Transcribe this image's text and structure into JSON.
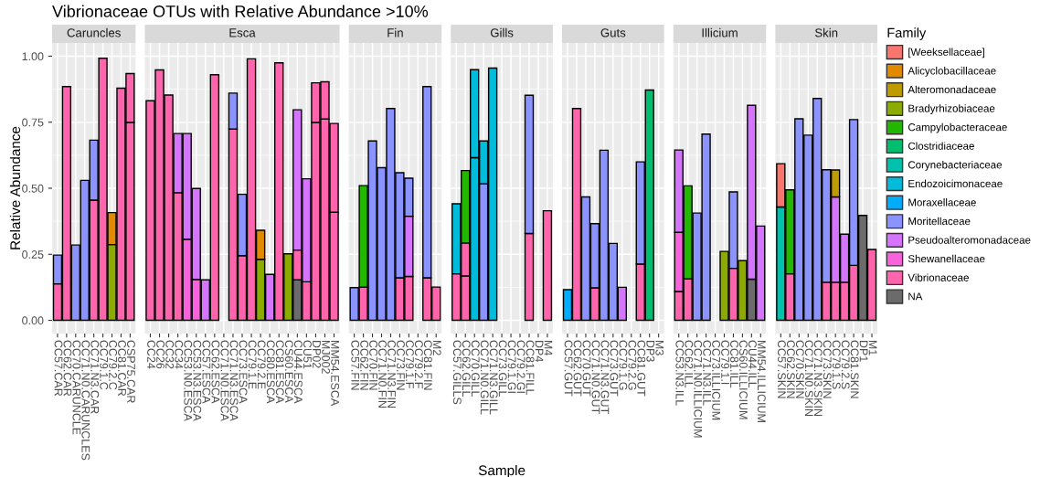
{
  "chart_data": [
    {
      "type": "bar",
      "stacked": true,
      "title": "Vibrionaceae OTUs with Relative Abundance >10%",
      "subtitle": "Caruncles",
      "ylabel": "Relative Abundance",
      "grid": true,
      "ylim": [
        -0.05,
        1.05
      ],
      "yticks": [
        {
          "value": 0,
          "label": "0.00"
        },
        {
          "value": 0.25,
          "label": "0.25"
        },
        {
          "value": 0.5,
          "label": "0.50"
        },
        {
          "value": 0.75,
          "label": "0.75"
        },
        {
          "value": 1,
          "label": "1.00"
        }
      ],
      "categories": [
        "CC57.CAR",
        "CC62.CAR",
        "CC70.CARUNCLE",
        "CC71.N0.CARUNCLES",
        "CC71.N3.CAR",
        "CC79.1.C",
        "CC79.2.C",
        "CC81.CAR",
        "CSP75.CAR"
      ],
      "series": [
        {
          "color": "#FF65AC",
          "values": [
            0.138,
            0.885,
            null,
            null,
            0.455,
            0.992,
            null,
            0.879,
            0.749
          ]
        },
        {
          "color": "#FF65AC",
          "values": [
            null,
            null,
            null,
            null,
            null,
            null,
            null,
            null,
            0.185
          ]
        },
        {
          "color": "#8B93FF",
          "values": [
            0.109,
            null,
            0.285,
            0.53,
            0.227,
            null,
            null,
            null,
            null
          ]
        },
        {
          "color": "#8CAB00",
          "values": [
            null,
            null,
            null,
            null,
            null,
            null,
            0.287,
            null,
            null
          ]
        },
        {
          "color": "#E18A00",
          "values": [
            null,
            null,
            null,
            null,
            null,
            null,
            0.121,
            null,
            null
          ]
        }
      ]
    },
    {
      "type": "bar",
      "stacked": true,
      "subtitle": "Esca",
      "grid": true,
      "tick_labels": "x",
      "ylim": [
        -0.05,
        1.05
      ],
      "yticks": [
        0,
        0.25,
        0.5,
        0.75,
        1
      ],
      "categories": [
        "CC24",
        "CC26",
        "CC32",
        "CC34",
        "CC53.N0.ESCA",
        "CC53.N3.ESCA",
        "CC57.ESCA",
        "CC62.ESCA",
        "CC71.N0.ESCA",
        "CC71.N3.ESCA",
        "CC73.ESCA",
        "CC79.1.E",
        "CC79.2.E",
        "CC80.ESCA",
        "CC81.ESCA",
        "CS60.ESCA",
        "CU44.ESCA",
        "CU51",
        "DP02",
        "MJ002",
        "MM54.ESCA"
      ],
      "series": [
        {
          "color": "#6B6B6B",
          "values": [
            null,
            null,
            null,
            null,
            null,
            null,
            null,
            null,
            null,
            null,
            null,
            null,
            null,
            null,
            null,
            null,
            0.153,
            null,
            null,
            null,
            null
          ]
        },
        {
          "color": "#FF65AC",
          "values": [
            0.831,
            0.948,
            0.853,
            0.483,
            null,
            null,
            null,
            0.93,
            null,
            0.724,
            0.245,
            0.99,
            null,
            null,
            0.975,
            null,
            0.113,
            0.146,
            0.749,
            0.762,
            0.409
          ]
        },
        {
          "color": "#FF65AC",
          "values": [
            null,
            null,
            null,
            null,
            null,
            null,
            null,
            null,
            null,
            null,
            null,
            null,
            null,
            null,
            null,
            null,
            null,
            null,
            0.15,
            0.141,
            0.336
          ]
        },
        {
          "color": "#F962DD",
          "values": [
            null,
            null,
            null,
            null,
            0.307,
            0.155,
            null,
            null,
            null,
            null,
            null,
            null,
            null,
            null,
            null,
            null,
            null,
            null,
            null,
            null,
            null
          ]
        },
        {
          "color": "#D575FE",
          "values": [
            null,
            null,
            null,
            0.224,
            0.4,
            0.344,
            0.153,
            null,
            null,
            null,
            null,
            null,
            null,
            0.174,
            null,
            null,
            0.531,
            0.39,
            null,
            null,
            null
          ]
        },
        {
          "color": "#8B93FF",
          "values": [
            null,
            null,
            null,
            null,
            null,
            null,
            null,
            null,
            null,
            0.136,
            0.232,
            null,
            null,
            null,
            null,
            null,
            null,
            null,
            null,
            null,
            null
          ]
        },
        {
          "color": "#8CAB00",
          "values": [
            null,
            null,
            null,
            null,
            null,
            null,
            null,
            null,
            null,
            null,
            null,
            null,
            0.231,
            null,
            null,
            0.252,
            null,
            null,
            null,
            null,
            null
          ]
        },
        {
          "color": "#E18A00",
          "values": [
            null,
            null,
            null,
            null,
            null,
            null,
            null,
            null,
            null,
            null,
            null,
            null,
            0.11,
            null,
            null,
            null,
            null,
            null,
            null,
            null,
            null
          ]
        }
      ]
    },
    {
      "type": "bar",
      "stacked": true,
      "subtitle": "Fin",
      "grid": true,
      "tick_labels": "x",
      "ylim": [
        -0.05,
        1.05
      ],
      "yticks": [
        0,
        0.25,
        0.5,
        0.75,
        1
      ],
      "categories": [
        "CC57.FIN",
        "CC62.FIN",
        "CC70.FIN",
        "CC71.N0.FIN",
        "CC71.N3.FIN",
        "CC73.FIN",
        "CC79.1.F",
        "CC79.2.F",
        "CC81.FIN",
        "M2"
      ],
      "series": [
        {
          "color": "#FF65AC",
          "values": [
            null,
            0.126,
            null,
            null,
            null,
            0.161,
            0.166,
            null,
            0.161,
            0.126
          ]
        },
        {
          "color": "#D575FE",
          "values": [
            null,
            null,
            null,
            null,
            null,
            null,
            0.228,
            null,
            null,
            null
          ]
        },
        {
          "color": "#8B93FF",
          "values": [
            0.124,
            null,
            0.679,
            0.578,
            0.802,
            0.398,
            0.144,
            null,
            0.724,
            null
          ]
        },
        {
          "color": "#24B700",
          "values": [
            null,
            0.384,
            null,
            null,
            null,
            null,
            null,
            null,
            null,
            null
          ]
        }
      ]
    },
    {
      "type": "bar",
      "stacked": true,
      "subtitle": "Gills",
      "xlabel": "Sample",
      "grid": true,
      "tick_labels": "x",
      "ylim": [
        -0.05,
        1.05
      ],
      "yticks": [
        0,
        0.25,
        0.5,
        0.75,
        1
      ],
      "categories": [
        "CC57.GILLS",
        "CC62.GILL",
        "CC70.GILL",
        "CC71.N0.GILL",
        "CC71.N3.GILL",
        "CC73.GILL",
        "CC79.1.GI",
        "CC79.2.GI",
        "CC81.FILL",
        "DP4",
        "M4"
      ],
      "series": [
        {
          "color": "#FF65AC",
          "values": [
            0.176,
            0.168,
            null,
            null,
            null,
            null,
            null,
            null,
            0.329,
            null,
            0.415
          ]
        },
        {
          "color": "#FF65AC",
          "values": [
            null,
            0.125,
            null,
            null,
            null,
            null,
            null,
            null,
            null,
            null,
            null
          ]
        },
        {
          "color": "#8B93FF",
          "values": [
            null,
            null,
            null,
            0.517,
            null,
            null,
            null,
            null,
            0.523,
            null,
            null
          ]
        },
        {
          "color": "#00BBDA",
          "values": [
            0.265,
            null,
            0.616,
            0.162,
            0.955,
            null,
            null,
            null,
            null,
            null,
            null
          ]
        },
        {
          "color": "#00BBDA",
          "values": [
            null,
            null,
            0.333,
            null,
            null,
            null,
            null,
            null,
            null,
            null,
            null
          ]
        },
        {
          "color": "#24B700",
          "values": [
            null,
            0.274,
            null,
            null,
            null,
            null,
            null,
            null,
            null,
            null,
            null
          ]
        }
      ]
    },
    {
      "type": "bar",
      "stacked": true,
      "subtitle": "Guts",
      "grid": true,
      "tick_labels": "x",
      "ylim": [
        -0.05,
        1.05
      ],
      "yticks": [
        0,
        0.25,
        0.5,
        0.75,
        1
      ],
      "categories": [
        "CC57.GUT",
        "CC62.GUT",
        "CC70.GUT",
        "CC71.N0.GUT",
        "CC71.N3.GUT",
        "CC73.GUT",
        "CC79.1.G",
        "CC79.2.G",
        "CC81.GUT",
        "DP3",
        "M3"
      ],
      "series": [
        {
          "color": "#FF65AC",
          "values": [
            null,
            0.802,
            null,
            0.123,
            null,
            null,
            null,
            null,
            0.213,
            null,
            null
          ]
        },
        {
          "color": "#D575FE",
          "values": [
            null,
            null,
            null,
            null,
            null,
            null,
            0.125,
            null,
            null,
            null,
            null
          ]
        },
        {
          "color": "#8B93FF",
          "values": [
            null,
            null,
            0.467,
            0.243,
            0.644,
            0.291,
            null,
            null,
            0.387,
            null,
            null
          ]
        },
        {
          "color": "#00ACFC",
          "values": [
            0.116,
            null,
            null,
            null,
            null,
            null,
            null,
            null,
            null,
            null,
            null
          ]
        },
        {
          "color": "#00BE70",
          "values": [
            null,
            null,
            null,
            null,
            null,
            null,
            null,
            null,
            null,
            0.872,
            null
          ]
        }
      ]
    },
    {
      "type": "bar",
      "stacked": true,
      "subtitle": "Illicium",
      "grid": true,
      "tick_labels": "x",
      "ylim": [
        -0.05,
        1.05
      ],
      "yticks": [
        0,
        0.25,
        0.5,
        0.75,
        1
      ],
      "categories": [
        "CC53.N3.ILL",
        "CC62.ILL",
        "CC71.N0.ILLICIUM",
        "CC71.N3.ILL",
        "CC73.ILLICIUM",
        "CC79.1.I",
        "CC81.ILL",
        "CS60.ILLICIUM",
        "CU44.ILL",
        "MM54.ILLICIUM"
      ],
      "series": [
        {
          "color": "#6B6B6B",
          "values": [
            null,
            null,
            null,
            null,
            null,
            null,
            null,
            null,
            0.156,
            null
          ]
        },
        {
          "color": "#FF65AC",
          "values": [
            0.109,
            0.157,
            null,
            null,
            null,
            null,
            0.197,
            null,
            null,
            null
          ]
        },
        {
          "color": "#F962DD",
          "values": [
            0.224,
            null,
            null,
            null,
            null,
            null,
            null,
            null,
            null,
            null
          ]
        },
        {
          "color": "#D575FE",
          "values": [
            0.312,
            null,
            null,
            null,
            null,
            null,
            null,
            null,
            0.658,
            0.357
          ]
        },
        {
          "color": "#8B93FF",
          "values": [
            null,
            null,
            0.406,
            0.705,
            null,
            null,
            0.289,
            null,
            null,
            null
          ]
        },
        {
          "color": "#24B700",
          "values": [
            null,
            0.352,
            null,
            null,
            null,
            null,
            null,
            null,
            null,
            null
          ]
        },
        {
          "color": "#8CAB00",
          "values": [
            null,
            null,
            null,
            null,
            null,
            0.261,
            null,
            0.226,
            null,
            null
          ]
        }
      ]
    },
    {
      "type": "bar",
      "stacked": true,
      "subtitle": "Skin",
      "grid": true,
      "tick_labels": "x",
      "legend": "right",
      "legend_title": "Family",
      "ylim": [
        -0.05,
        1.05
      ],
      "yticks": [
        0,
        0.25,
        0.5,
        0.75,
        1
      ],
      "categories": [
        "CC57.SKIN",
        "CC62.SKIN",
        "CC70.SKIN",
        "CC71.N0.SKIN",
        "CC71.N3.SKIN",
        "CC73.SKIN",
        "CC79.1.S",
        "CC79.2.S",
        "CC81.SKIN",
        "DP1",
        "M1"
      ],
      "series": [
        {
          "name": "NA",
          "color": "#6B6B6B",
          "values": [
            null,
            null,
            null,
            null,
            null,
            null,
            null,
            null,
            null,
            0.397,
            null
          ]
        },
        {
          "name": "Vibrionaceae",
          "color": "#FF65AC",
          "values": [
            null,
            0.176,
            null,
            null,
            null,
            0.144,
            0.144,
            0.144,
            0.208,
            null,
            0.268
          ]
        },
        {
          "name": "Shewanellaceae",
          "color": "#F962DD",
          "values": [
            null,
            null,
            null,
            null,
            null,
            null,
            null,
            null,
            null,
            null,
            null
          ]
        },
        {
          "name": "Pseudoalteromonadaceae",
          "color": "#D575FE",
          "values": [
            null,
            null,
            null,
            null,
            null,
            null,
            0.323,
            0.182,
            null,
            null,
            null
          ]
        },
        {
          "name": "Moritellaceae",
          "color": "#8B93FF",
          "values": [
            null,
            null,
            0.763,
            0.701,
            0.84,
            0.426,
            null,
            null,
            0.552,
            null,
            null
          ]
        },
        {
          "name": "Moraxellaceae",
          "color": "#00ACFC",
          "values": [
            null,
            null,
            null,
            null,
            null,
            null,
            null,
            null,
            null,
            null,
            null
          ]
        },
        {
          "name": "Endozoicimonaceae",
          "color": "#00BBDA",
          "values": [
            null,
            null,
            null,
            null,
            null,
            null,
            null,
            null,
            null,
            null,
            null
          ]
        },
        {
          "name": "Corynebacteriaceae",
          "color": "#00C1AB",
          "values": [
            0.429,
            null,
            null,
            null,
            null,
            null,
            null,
            null,
            null,
            null,
            null
          ]
        },
        {
          "name": "Clostridiaceae",
          "color": "#00BE70",
          "values": [
            null,
            null,
            null,
            null,
            null,
            null,
            null,
            null,
            null,
            null,
            null
          ]
        },
        {
          "name": "Campylobacteraceae",
          "color": "#24B700",
          "values": [
            null,
            0.318,
            null,
            null,
            null,
            null,
            null,
            null,
            null,
            null,
            null
          ]
        },
        {
          "name": "Bradyrhizobiaceae",
          "color": "#8CAB00",
          "values": [
            null,
            null,
            null,
            null,
            null,
            null,
            null,
            null,
            null,
            null,
            null
          ]
        },
        {
          "name": "Alteromonadaceae",
          "color": "#BE9C00",
          "values": [
            null,
            null,
            null,
            null,
            null,
            null,
            0.102,
            null,
            null,
            null,
            null
          ]
        },
        {
          "name": "Alicyclobacillaceae",
          "color": "#E18A00",
          "values": [
            null,
            null,
            null,
            null,
            null,
            null,
            null,
            null,
            null,
            null,
            null
          ]
        },
        {
          "name": "[Weeksellaceae]",
          "color": "#F8766D",
          "values": [
            0.164,
            null,
            null,
            null,
            null,
            null,
            null,
            null,
            null,
            null,
            null
          ]
        }
      ]
    }
  ]
}
